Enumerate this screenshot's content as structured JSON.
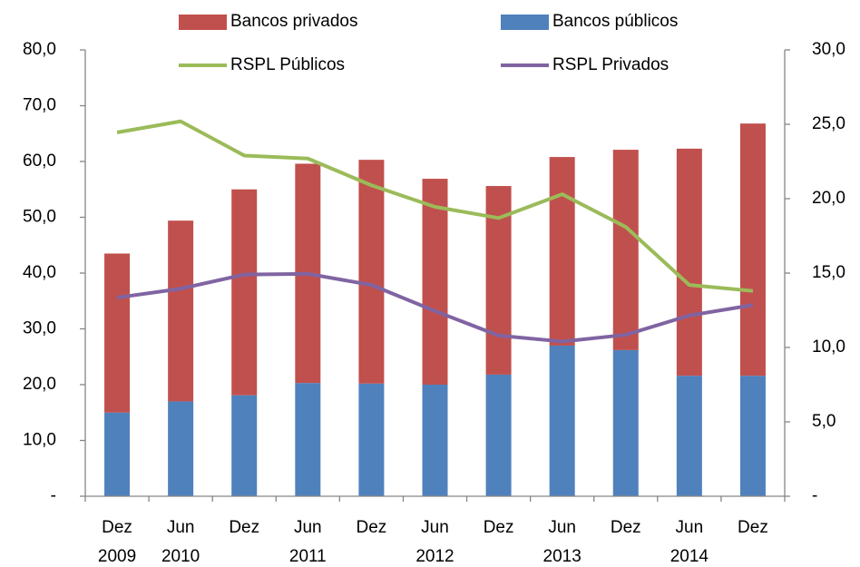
{
  "chart_data": {
    "type": "stacked-bar-line",
    "categories": [
      [
        "Dez",
        "2009"
      ],
      [
        "Jun",
        "2010"
      ],
      [
        "Dez"
      ],
      [
        "Jun",
        "2011"
      ],
      [
        "Dez"
      ],
      [
        "Jun",
        "2012"
      ],
      [
        "Dez"
      ],
      [
        "Jun",
        "2013"
      ],
      [
        "Dez"
      ],
      [
        "Jun",
        "2014"
      ],
      [
        "Dez"
      ]
    ],
    "series": [
      {
        "name": "Bancos públicos",
        "color": "#4f81bd",
        "kind": "bar",
        "values": [
          15.0,
          17.0,
          18.1,
          20.3,
          20.2,
          20.0,
          21.8,
          27.0,
          26.2,
          21.6,
          21.6
        ]
      },
      {
        "name": "Bancos privados",
        "color": "#c0504d",
        "kind": "bar",
        "values": [
          28.5,
          32.4,
          36.9,
          39.3,
          40.1,
          36.9,
          33.8,
          33.8,
          35.9,
          40.7,
          45.2
        ]
      },
      {
        "name": "RSPL Públicos",
        "color": "#9bbb59",
        "kind": "line",
        "axis": "y2",
        "values": [
          24.45,
          25.2,
          22.9,
          22.7,
          20.9,
          19.45,
          18.7,
          20.3,
          18.1,
          14.2,
          13.8
        ]
      },
      {
        "name": "RSPL Privados",
        "color": "#8064a2",
        "kind": "line",
        "axis": "y2",
        "values": [
          13.35,
          13.95,
          14.9,
          14.95,
          14.2,
          12.45,
          10.8,
          10.4,
          10.85,
          12.15,
          12.85
        ]
      }
    ],
    "ylim": [
      0,
      80
    ],
    "yticks": [
      {
        "value": 0,
        "label": "-"
      },
      {
        "value": 10,
        "label": "10,0"
      },
      {
        "value": 20,
        "label": "20,0"
      },
      {
        "value": 30,
        "label": "30,0"
      },
      {
        "value": 40,
        "label": "40,0"
      },
      {
        "value": 50,
        "label": "50,0"
      },
      {
        "value": 60,
        "label": "60,0"
      },
      {
        "value": 70,
        "label": "70,0"
      },
      {
        "value": 80,
        "label": "80,0"
      }
    ],
    "y2lim": [
      0,
      30
    ],
    "y2ticks": [
      {
        "value": 0,
        "label": "-"
      },
      {
        "value": 5,
        "label": "5,0"
      },
      {
        "value": 10,
        "label": "10,0"
      },
      {
        "value": 15,
        "label": "15,0"
      },
      {
        "value": 20,
        "label": "20,0"
      },
      {
        "value": 25,
        "label": "25,0"
      },
      {
        "value": 30,
        "label": "30,0"
      }
    ],
    "grid": false,
    "legend": "top"
  }
}
